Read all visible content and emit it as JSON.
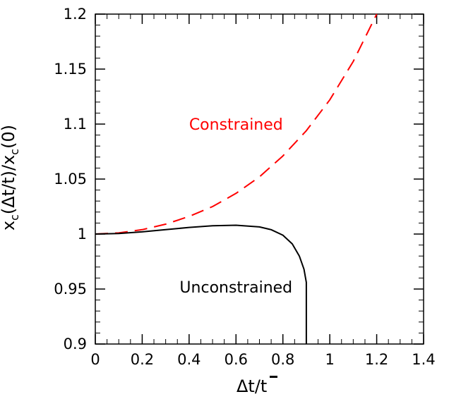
{
  "chart_data": {
    "type": "line",
    "xlabel": "Δt/t̄",
    "ylabel": "x_c(Δt/t̄)/x_c(0)",
    "xlim": [
      0,
      1.4
    ],
    "ylim": [
      0.9,
      1.2
    ],
    "x_ticks": [
      "0",
      "0.2",
      "0.4",
      "0.6",
      "0.8",
      "1",
      "1.2",
      "1.4"
    ],
    "y_ticks": [
      "0.9",
      "0.95",
      "1",
      "1.05",
      "1.1",
      "1.15",
      "1.2"
    ],
    "grid": false,
    "series": [
      {
        "name": "Constrained",
        "color": "#ff0000",
        "dash": "dashed",
        "x": [
          0,
          0.1,
          0.2,
          0.3,
          0.4,
          0.5,
          0.6,
          0.7,
          0.8,
          0.9,
          1.0,
          1.1,
          1.2
        ],
        "y": [
          1.0,
          1.001,
          1.004,
          1.009,
          1.016,
          1.025,
          1.037,
          1.052,
          1.071,
          1.094,
          1.122,
          1.157,
          1.2
        ]
      },
      {
        "name": "Unconstrained",
        "color": "#000000",
        "dash": "solid",
        "x": [
          0,
          0.1,
          0.2,
          0.3,
          0.4,
          0.5,
          0.6,
          0.7,
          0.75,
          0.8,
          0.84,
          0.87,
          0.89,
          0.9,
          0.9,
          0.9
        ],
        "y": [
          1.0,
          1.0005,
          1.002,
          1.004,
          1.006,
          1.0075,
          1.008,
          1.0065,
          1.004,
          0.999,
          0.991,
          0.98,
          0.968,
          0.956,
          0.93,
          0.9
        ]
      }
    ],
    "annotations": [
      {
        "text": "Constrained",
        "x": 0.6,
        "y": 1.1,
        "color": "#ff0000"
      },
      {
        "text": "Unconstrained",
        "x": 0.6,
        "y": 0.952,
        "color": "#000000"
      }
    ]
  }
}
